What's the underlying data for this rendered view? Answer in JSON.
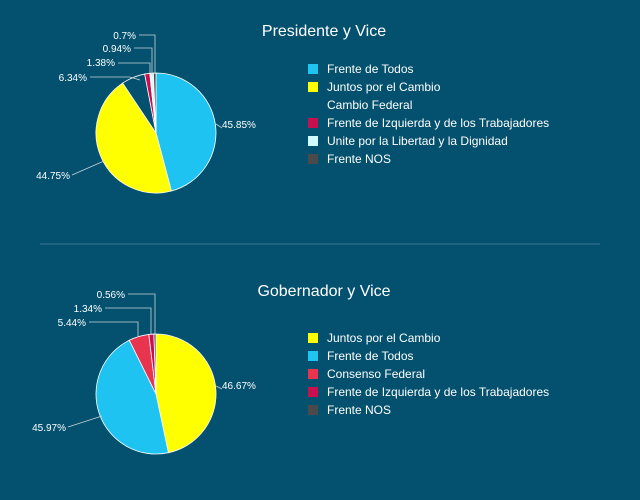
{
  "chart_data": [
    {
      "type": "pie",
      "title": "Presidente y Vice",
      "legend_position": "right",
      "slices": [
        {
          "name": "Frente de Todos",
          "value": 45.85,
          "label": "45.85%",
          "color": "#1ec3f2"
        },
        {
          "name": "Juntos por el Cambio",
          "value": 44.75,
          "label": "44.75%",
          "color": "#ffff00"
        },
        {
          "name": "Cambio Federal",
          "value": 6.34,
          "label": "6.34%",
          "color": "#03516e"
        },
        {
          "name": "Frente de Izquierda y de los Trabajadores",
          "value": 1.38,
          "label": "1.38%",
          "color": "#c8104f"
        },
        {
          "name": "Unite por la Libertad y la Dignidad",
          "value": 0.94,
          "label": "0.94%",
          "color": "#d2fbff"
        },
        {
          "name": "Frente NOS",
          "value": 0.7,
          "label": "0.7%",
          "color": "#4a4a4a"
        }
      ]
    },
    {
      "type": "pie",
      "title": "Gobernador y Vice",
      "legend_position": "right",
      "slices": [
        {
          "name": "Juntos por el Cambio",
          "value": 46.67,
          "label": "46.67%",
          "color": "#ffff00"
        },
        {
          "name": "Frente de Todos",
          "value": 45.97,
          "label": "45.97%",
          "color": "#1ec3f2"
        },
        {
          "name": "Consenso Federal",
          "value": 5.44,
          "label": "5.44%",
          "color": "#e8344f"
        },
        {
          "name": "Frente de Izquierda y de los Trabajadores",
          "value": 1.34,
          "label": "1.34%",
          "color": "#c8104f"
        },
        {
          "name": "Frente NOS",
          "value": 0.56,
          "label": "0.56%",
          "color": "#4a4a4a"
        }
      ]
    }
  ]
}
